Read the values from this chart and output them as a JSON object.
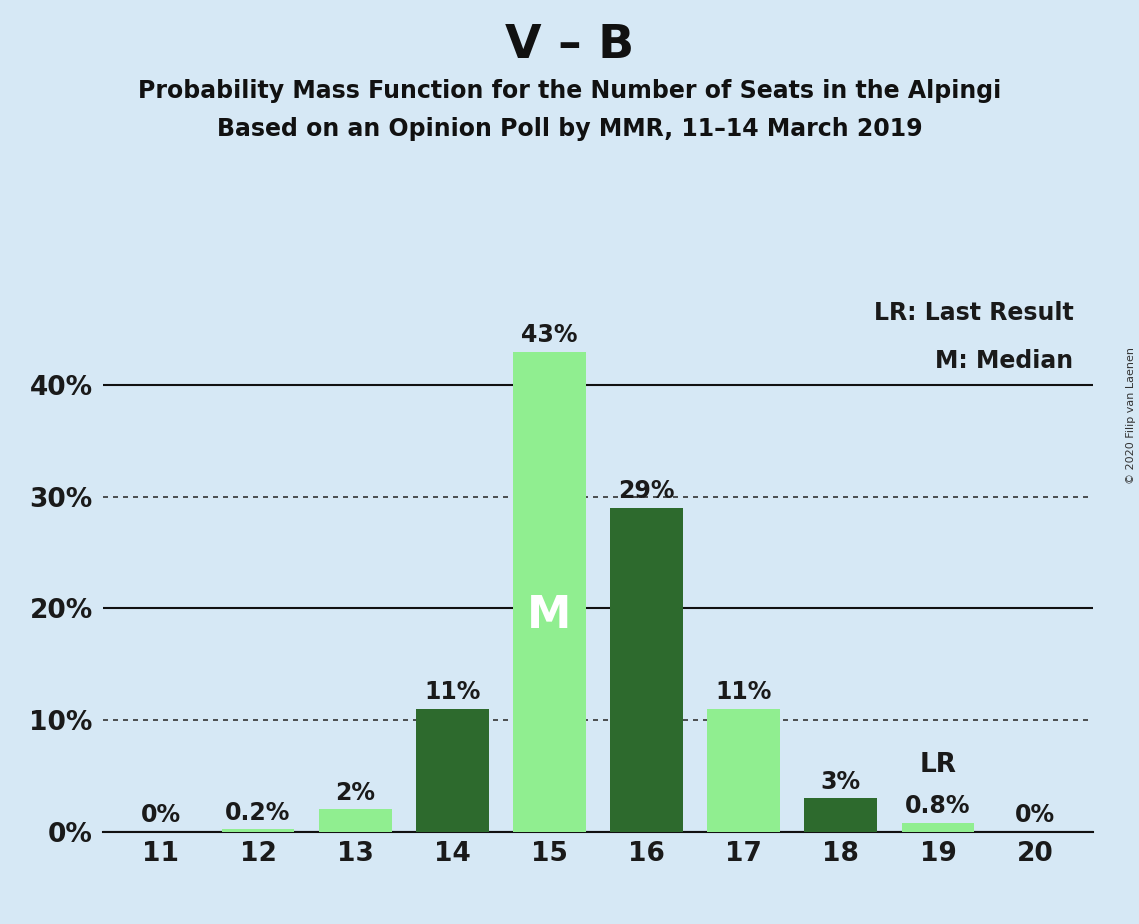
{
  "title": "V – B",
  "subtitle1": "Probability Mass Function for the Number of Seats in the Alpingi",
  "subtitle2": "Based on an Opinion Poll by MMR, 11–14 March 2019",
  "copyright": "© 2020 Filip van Laenen",
  "seats": [
    11,
    12,
    13,
    14,
    15,
    16,
    17,
    18,
    19,
    20
  ],
  "values": [
    0.0,
    0.2,
    2.0,
    11.0,
    43.0,
    29.0,
    11.0,
    3.0,
    0.8,
    0.0
  ],
  "labels": [
    "0%",
    "0.2%",
    "2%",
    "11%",
    "43%",
    "29%",
    "11%",
    "3%",
    "0.8%",
    "0%"
  ],
  "colors": [
    "#90EE90",
    "#90EE90",
    "#90EE90",
    "#2D6A2D",
    "#90EE90",
    "#2D6A2D",
    "#90EE90",
    "#2D6A2D",
    "#90EE90",
    "#90EE90"
  ],
  "median_seat": 15,
  "lr_seat": 19,
  "legend_lr": "LR: Last Result",
  "legend_m": "M: Median",
  "background_color": "#D6E8F5",
  "yticks": [
    0,
    10,
    20,
    30,
    40
  ],
  "ylim": [
    0,
    48
  ],
  "bar_width": 0.75
}
